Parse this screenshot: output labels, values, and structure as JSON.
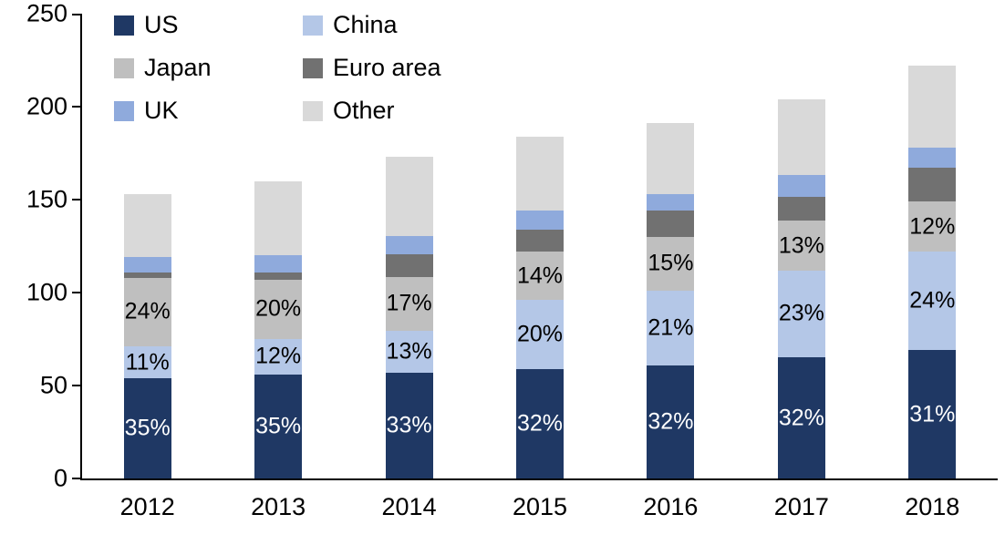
{
  "chart_data": {
    "type": "bar",
    "stacked": true,
    "title": "",
    "xlabel": "",
    "ylabel": "",
    "ylim": [
      0,
      250
    ],
    "yticks": [
      0,
      50,
      100,
      150,
      200,
      250
    ],
    "grid": false,
    "legend_position": "top-left-inside",
    "categories": [
      "2012",
      "2013",
      "2014",
      "2015",
      "2016",
      "2017",
      "2018"
    ],
    "series": [
      {
        "name": "US",
        "color": "#1f3864",
        "label_color": "#ffffff",
        "values": [
          54,
          56,
          57,
          59,
          61,
          65,
          69
        ],
        "labels": [
          "35%",
          "35%",
          "33%",
          "32%",
          "32%",
          "32%",
          "31%"
        ]
      },
      {
        "name": "China",
        "color": "#b4c7e7",
        "label_color": "#000000",
        "values": [
          17,
          19,
          22.5,
          37,
          40,
          47,
          53
        ],
        "labels": [
          "11%",
          "12%",
          "13%",
          "20%",
          "21%",
          "23%",
          "24%"
        ]
      },
      {
        "name": "Japan",
        "color": "#bfbfbf",
        "label_color": "#000000",
        "values": [
          37,
          32,
          29,
          26,
          29,
          26.5,
          27
        ],
        "labels": [
          "24%",
          "20%",
          "17%",
          "14%",
          "15%",
          "13%",
          "12%"
        ]
      },
      {
        "name": "Euro area",
        "color": "#717171",
        "label_color": "#000000",
        "values": [
          3,
          4,
          12,
          12,
          14,
          13,
          18
        ],
        "labels": [
          "",
          "",
          "",
          "",
          "",
          "",
          ""
        ]
      },
      {
        "name": "UK",
        "color": "#8faadc",
        "label_color": "#000000",
        "values": [
          8,
          9,
          10,
          10,
          9,
          12,
          11
        ],
        "labels": [
          "",
          "",
          "",
          "",
          "",
          "",
          ""
        ]
      },
      {
        "name": "Other",
        "color": "#d9d9d9",
        "label_color": "#000000",
        "values": [
          34,
          40,
          42.5,
          40,
          38,
          40.5,
          44
        ],
        "labels": [
          "",
          "",
          "",
          "",
          "",
          "",
          ""
        ]
      }
    ],
    "totals": [
      153,
      160,
      173,
      184,
      191,
      204,
      222
    ]
  }
}
